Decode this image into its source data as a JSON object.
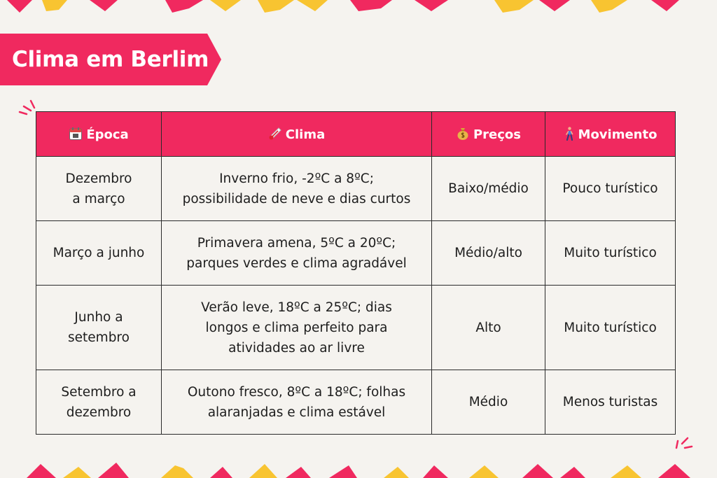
{
  "title": "Clima em Berlim",
  "colors": {
    "accent": "#f0295f",
    "yellow": "#f8c431",
    "background": "#f5f3ef",
    "border": "#2a2a2a"
  },
  "table": {
    "headers": [
      {
        "icon": "calendar-icon",
        "label": "Época"
      },
      {
        "icon": "thermometer-icon",
        "label": "Clima"
      },
      {
        "icon": "money-bag-icon",
        "label": "Preços"
      },
      {
        "icon": "person-walking-icon",
        "label": "Movimento"
      }
    ],
    "rows": [
      {
        "epoca": [
          "Dezembro",
          "a março"
        ],
        "clima": [
          "Inverno frio, -2ºC a 8ºC;",
          "possibilidade de neve e dias curtos"
        ],
        "precos": "Baixo/médio",
        "movimento": "Pouco turístico"
      },
      {
        "epoca": [
          "Março a junho"
        ],
        "clima": [
          "Primavera amena, 5ºC a 20ºC;",
          "parques verdes e clima agradável"
        ],
        "precos": "Médio/alto",
        "movimento": "Muito turístico"
      },
      {
        "epoca": [
          "Junho a",
          "setembro"
        ],
        "clima": [
          "Verão leve, 18ºC a 25ºC; dias",
          "longos e clima perfeito para",
          "atividades ao ar livre"
        ],
        "precos": "Alto",
        "movimento": "Muito turístico"
      },
      {
        "epoca": [
          "Setembro a",
          "dezembro"
        ],
        "clima": [
          "Outono fresco, 8ºC a 18ºC; folhas",
          "alaranjadas e clima estável"
        ],
        "precos": "Médio",
        "movimento": "Menos turistas"
      }
    ]
  }
}
